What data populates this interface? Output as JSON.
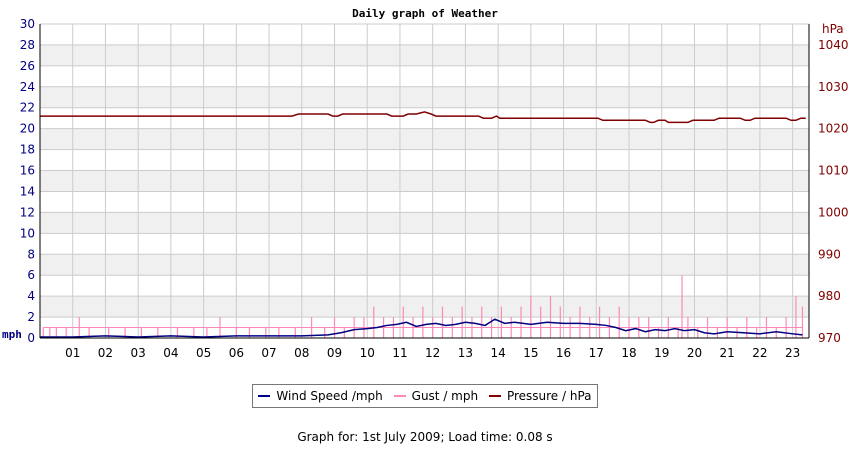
{
  "chart_data": {
    "type": "line",
    "title": "Daily graph of Weather",
    "y_left": {
      "unit": "mph",
      "ylim": [
        0,
        30
      ],
      "ticks": [
        "0",
        "2",
        "4",
        "6",
        "8",
        "10",
        "12",
        "14",
        "16",
        "18",
        "20",
        "22",
        "24",
        "26",
        "28",
        "30"
      ]
    },
    "y_right": {
      "unit": "hPa",
      "ylim": [
        970,
        1045
      ],
      "ticks": [
        "970",
        "980",
        "990",
        "1000",
        "1010",
        "1020",
        "1030",
        "1040"
      ]
    },
    "x_ticks": [
      "01",
      "02",
      "03",
      "04",
      "05",
      "06",
      "07",
      "08",
      "09",
      "10",
      "11",
      "12",
      "13",
      "14",
      "15",
      "16",
      "17",
      "18",
      "19",
      "20",
      "21",
      "22",
      "23"
    ],
    "xlim": [
      0,
      23.5
    ],
    "grid": true,
    "legend_position": "bottom",
    "series": [
      {
        "name": "Wind Speed /mph",
        "color": "#000080",
        "axis": "left",
        "x": [
          0,
          1,
          2,
          3,
          4,
          5,
          6,
          7,
          8,
          8.8,
          9.2,
          9.6,
          10,
          10.3,
          10.6,
          10.9,
          11.2,
          11.5,
          11.8,
          12.1,
          12.4,
          12.7,
          13,
          13.3,
          13.6,
          13.9,
          14.2,
          14.5,
          15,
          15.5,
          16,
          16.5,
          17,
          17.3,
          17.6,
          17.9,
          18.2,
          18.5,
          18.8,
          19.1,
          19.4,
          19.7,
          20,
          20.3,
          20.6,
          21,
          21.5,
          22,
          22.5,
          23,
          23.3
        ],
        "values": [
          0.1,
          0.1,
          0.2,
          0.1,
          0.2,
          0.1,
          0.2,
          0.2,
          0.2,
          0.3,
          0.5,
          0.8,
          0.9,
          1.0,
          1.2,
          1.3,
          1.5,
          1.1,
          1.3,
          1.4,
          1.2,
          1.3,
          1.5,
          1.4,
          1.2,
          1.8,
          1.4,
          1.5,
          1.3,
          1.5,
          1.4,
          1.4,
          1.3,
          1.2,
          1.0,
          0.7,
          0.9,
          0.6,
          0.8,
          0.7,
          0.9,
          0.7,
          0.8,
          0.5,
          0.4,
          0.6,
          0.5,
          0.4,
          0.6,
          0.4,
          0.3
        ]
      },
      {
        "name": "Gust / mph",
        "color": "#ff88bb",
        "axis": "left",
        "style": "spikes",
        "x": [
          0.1,
          0.3,
          0.5,
          0.8,
          1.2,
          1.5,
          2.1,
          2.6,
          3.1,
          3.6,
          4.2,
          4.7,
          5.1,
          5.5,
          6.0,
          6.4,
          6.9,
          7.3,
          7.8,
          8.3,
          8.7,
          9.0,
          9.3,
          9.6,
          9.9,
          10.2,
          10.5,
          10.8,
          11.1,
          11.4,
          11.7,
          12.0,
          12.3,
          12.6,
          12.9,
          13.2,
          13.5,
          13.8,
          14.1,
          14.4,
          14.7,
          15.0,
          15.3,
          15.6,
          15.9,
          16.2,
          16.5,
          16.8,
          17.1,
          17.4,
          17.7,
          18.0,
          18.3,
          18.6,
          18.9,
          19.2,
          19.5,
          19.62,
          19.8,
          20.1,
          20.4,
          20.7,
          21.0,
          21.3,
          21.6,
          21.9,
          22.2,
          22.5,
          22.8,
          23.1,
          23.3
        ],
        "values": [
          1.0,
          1.0,
          1.0,
          1.0,
          2.0,
          1.0,
          1.0,
          1.0,
          1.0,
          1.0,
          1.0,
          1.0,
          1.0,
          2.0,
          1.0,
          1.0,
          1.0,
          1.0,
          1.0,
          2.0,
          1.0,
          2.0,
          1.0,
          2.0,
          2.0,
          3.0,
          2.0,
          2.0,
          3.0,
          2.0,
          3.0,
          2.0,
          3.0,
          2.0,
          3.0,
          2.0,
          3.0,
          2.0,
          3.0,
          2.0,
          3.0,
          4.0,
          3.0,
          4.0,
          3.0,
          2.0,
          3.0,
          2.0,
          3.0,
          2.0,
          3.0,
          2.0,
          2.0,
          2.0,
          1.0,
          2.0,
          1.0,
          6.0,
          2.0,
          1.0,
          2.0,
          1.0,
          2.0,
          1.0,
          2.0,
          1.0,
          2.0,
          1.0,
          2.0,
          4.0,
          3.0
        ]
      },
      {
        "name": "Pressure / hPa",
        "color": "#800000",
        "axis": "right",
        "x": [
          0,
          7.7,
          7.9,
          8.8,
          8.95,
          9.1,
          9.25,
          10.6,
          10.75,
          11.1,
          11.25,
          11.5,
          11.75,
          11.95,
          12.1,
          12.3,
          13.4,
          13.55,
          13.8,
          13.95,
          14.05,
          14.15,
          17.05,
          17.2,
          18.5,
          18.65,
          18.75,
          18.9,
          19.1,
          19.2,
          19.3,
          19.8,
          19.95,
          20.6,
          20.75,
          20.9,
          21.4,
          21.55,
          21.7,
          21.85,
          22.8,
          22.95,
          23.1,
          23.25,
          23.4
        ],
        "values": [
          1023.0,
          1023.0,
          1023.5,
          1023.5,
          1023.0,
          1023.0,
          1023.5,
          1023.5,
          1023.0,
          1023.0,
          1023.5,
          1023.5,
          1024.0,
          1023.5,
          1023.0,
          1023.0,
          1023.0,
          1022.5,
          1022.5,
          1023.0,
          1022.5,
          1022.5,
          1022.5,
          1022.0,
          1022.0,
          1021.5,
          1021.5,
          1022.0,
          1022.0,
          1021.5,
          1021.5,
          1021.5,
          1022.0,
          1022.0,
          1022.5,
          1022.5,
          1022.5,
          1022.0,
          1022.0,
          1022.5,
          1022.5,
          1022.0,
          1022.0,
          1022.5,
          1022.5
        ]
      }
    ]
  },
  "legend": {
    "wind_label": "Wind Speed /mph",
    "gust_label": "Gust / mph",
    "pressure_label": "Pressure / hPa"
  },
  "footer": {
    "text": "Graph for: 1st July 2009; Load time: 0.08 s"
  },
  "colors": {
    "wind": "#000080",
    "gust": "#ff88bb",
    "pressure": "#800000",
    "band": "#f0f0f0",
    "grid": "#cccccc"
  }
}
